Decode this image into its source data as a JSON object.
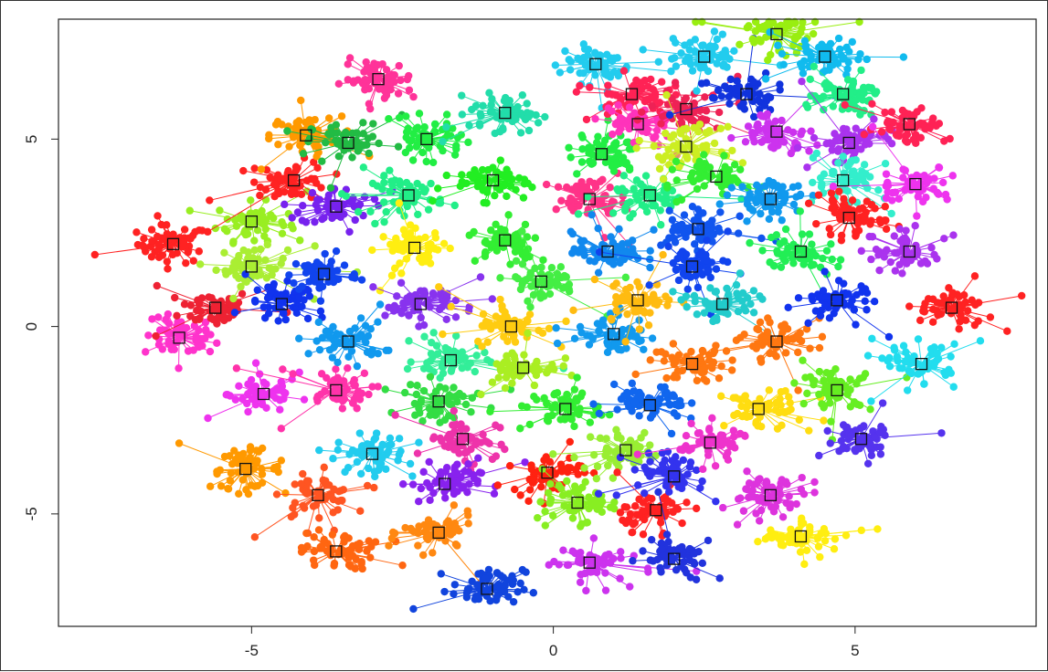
{
  "chart_data": {
    "type": "scatter",
    "title": "",
    "xlabel": "",
    "ylabel": "",
    "xlim": [
      -8.2,
      8.0
    ],
    "ylim": [
      -8.0,
      8.2
    ],
    "x_ticks": [
      -5,
      0,
      5
    ],
    "x_tick_labels": [
      "-5",
      "0",
      "5"
    ],
    "y_ticks": [
      -5,
      0,
      5
    ],
    "y_tick_labels": [
      "-5",
      "0",
      "5"
    ],
    "grid": false,
    "legend": "none",
    "center_marker": "open-square",
    "series": [
      {
        "color": "#ff2222",
        "x": -6.3,
        "y": 2.2
      },
      {
        "color": "#ff33cc",
        "x": -6.2,
        "y": -0.3
      },
      {
        "color": "#ee2233",
        "x": -5.6,
        "y": 0.5
      },
      {
        "color": "#99ee22",
        "x": -5.0,
        "y": 2.8
      },
      {
        "color": "#aaee33",
        "x": -5.0,
        "y": 1.6
      },
      {
        "color": "#ff9900",
        "x": -5.1,
        "y": -3.8
      },
      {
        "color": "#ee33ee",
        "x": -4.8,
        "y": -1.8
      },
      {
        "color": "#1133ee",
        "x": -4.5,
        "y": 0.6
      },
      {
        "color": "#ff2222",
        "x": -4.3,
        "y": 3.9
      },
      {
        "color": "#ff5522",
        "x": -3.9,
        "y": -4.5
      },
      {
        "color": "#ff9900",
        "x": -4.1,
        "y": 5.1
      },
      {
        "color": "#1144ee",
        "x": -3.8,
        "y": 1.4
      },
      {
        "color": "#7722ee",
        "x": -3.6,
        "y": 3.2
      },
      {
        "color": "#ff33aa",
        "x": -3.6,
        "y": -1.7
      },
      {
        "color": "#ff6611",
        "x": -3.6,
        "y": -6.0
      },
      {
        "color": "#22bb44",
        "x": -3.4,
        "y": 4.9
      },
      {
        "color": "#1199ee",
        "x": -3.4,
        "y": -0.4
      },
      {
        "color": "#22ccee",
        "x": -3.0,
        "y": -3.4
      },
      {
        "color": "#ff3399",
        "x": -2.9,
        "y": 6.6
      },
      {
        "color": "#22ee88",
        "x": -2.4,
        "y": 3.5
      },
      {
        "color": "#ffee11",
        "x": -2.3,
        "y": 2.1
      },
      {
        "color": "#8833ee",
        "x": -2.2,
        "y": 0.6
      },
      {
        "color": "#22ee44",
        "x": -2.1,
        "y": 5.0
      },
      {
        "color": "#ff8811",
        "x": -1.9,
        "y": -5.5
      },
      {
        "color": "#33ee99",
        "x": -1.7,
        "y": -0.9
      },
      {
        "color": "#33dd44",
        "x": -1.9,
        "y": -2.0
      },
      {
        "color": "#ee33aa",
        "x": -1.5,
        "y": -3.0
      },
      {
        "color": "#8822ee",
        "x": -1.8,
        "y": -4.2
      },
      {
        "color": "#1144dd",
        "x": -1.1,
        "y": -7.0
      },
      {
        "color": "#22ddaa",
        "x": -0.8,
        "y": 5.7
      },
      {
        "color": "#22ee22",
        "x": -1.0,
        "y": 3.9
      },
      {
        "color": "#33ee33",
        "x": -0.8,
        "y": 2.3
      },
      {
        "color": "#ffcc11",
        "x": -0.7,
        "y": 0.0
      },
      {
        "color": "#aaee22",
        "x": -0.5,
        "y": -1.1
      },
      {
        "color": "#44ee44",
        "x": -0.2,
        "y": 1.2
      },
      {
        "color": "#ff2211",
        "x": -0.1,
        "y": -3.9
      },
      {
        "color": "#ff3388",
        "x": 0.6,
        "y": 3.4
      },
      {
        "color": "#33ee33",
        "x": 0.2,
        "y": -2.2
      },
      {
        "color": "#88ee22",
        "x": 0.4,
        "y": -4.7
      },
      {
        "color": "#cc33ee",
        "x": 0.6,
        "y": -6.3
      },
      {
        "color": "#22ccee",
        "x": 0.7,
        "y": 7.0
      },
      {
        "color": "#22ee44",
        "x": 0.8,
        "y": 4.6
      },
      {
        "color": "#1188ee",
        "x": 0.9,
        "y": 2.0
      },
      {
        "color": "#1199ee",
        "x": 1.0,
        "y": -0.2
      },
      {
        "color": "#ffbb11",
        "x": 1.4,
        "y": 0.7
      },
      {
        "color": "#99ee33",
        "x": 1.2,
        "y": -3.3
      },
      {
        "color": "#ff2255",
        "x": 1.3,
        "y": 6.2
      },
      {
        "color": "#ff33bb",
        "x": 1.4,
        "y": 5.4
      },
      {
        "color": "#22ee88",
        "x": 1.6,
        "y": 3.5
      },
      {
        "color": "#1166ee",
        "x": 1.6,
        "y": -2.1
      },
      {
        "color": "#ff2222",
        "x": 1.7,
        "y": -4.9
      },
      {
        "color": "#3333ee",
        "x": 2.0,
        "y": -4.0
      },
      {
        "color": "#2233dd",
        "x": 2.0,
        "y": -6.2
      },
      {
        "color": "#ff7711",
        "x": 2.3,
        "y": -1.0
      },
      {
        "color": "#ee2255",
        "x": 2.2,
        "y": 5.8
      },
      {
        "color": "#ccee22",
        "x": 2.2,
        "y": 4.8
      },
      {
        "color": "#1155ee",
        "x": 2.4,
        "y": 2.6
      },
      {
        "color": "#1144ee",
        "x": 2.3,
        "y": 1.6
      },
      {
        "color": "#22cccc",
        "x": 2.8,
        "y": 0.6
      },
      {
        "color": "#22ccee",
        "x": 2.5,
        "y": 7.2
      },
      {
        "color": "#33ee33",
        "x": 2.7,
        "y": 4.0
      },
      {
        "color": "#ee33cc",
        "x": 2.6,
        "y": -3.1
      },
      {
        "color": "#1133dd",
        "x": 3.2,
        "y": 6.2
      },
      {
        "color": "#ffdd11",
        "x": 3.4,
        "y": -2.2
      },
      {
        "color": "#ff7711",
        "x": 3.7,
        "y": -0.4
      },
      {
        "color": "#99ee11",
        "x": 3.7,
        "y": 7.8
      },
      {
        "color": "#cc33ee",
        "x": 3.7,
        "y": 5.2
      },
      {
        "color": "#1199ee",
        "x": 3.6,
        "y": 3.4
      },
      {
        "color": "#dd33dd",
        "x": 3.6,
        "y": -4.5
      },
      {
        "color": "#22ee55",
        "x": 4.1,
        "y": 2.0
      },
      {
        "color": "#ffee11",
        "x": 4.1,
        "y": -5.6
      },
      {
        "color": "#11bbee",
        "x": 4.5,
        "y": 7.2
      },
      {
        "color": "#22ee88",
        "x": 4.8,
        "y": 6.2
      },
      {
        "color": "#aa33ee",
        "x": 4.9,
        "y": 4.9
      },
      {
        "color": "#33eecc",
        "x": 4.8,
        "y": 3.9
      },
      {
        "color": "#ff2222",
        "x": 4.9,
        "y": 2.9
      },
      {
        "color": "#1133ee",
        "x": 4.7,
        "y": 0.7
      },
      {
        "color": "#66ee22",
        "x": 4.7,
        "y": -1.7
      },
      {
        "color": "#5533ee",
        "x": 5.1,
        "y": -3.0
      },
      {
        "color": "#ff2255",
        "x": 5.9,
        "y": 5.4
      },
      {
        "color": "#ee33ee",
        "x": 6.0,
        "y": 3.8
      },
      {
        "color": "#aa33ee",
        "x": 5.9,
        "y": 2.0
      },
      {
        "color": "#ff2222",
        "x": 6.6,
        "y": 0.5
      },
      {
        "color": "#22ddee",
        "x": 6.1,
        "y": -1.0
      }
    ]
  }
}
